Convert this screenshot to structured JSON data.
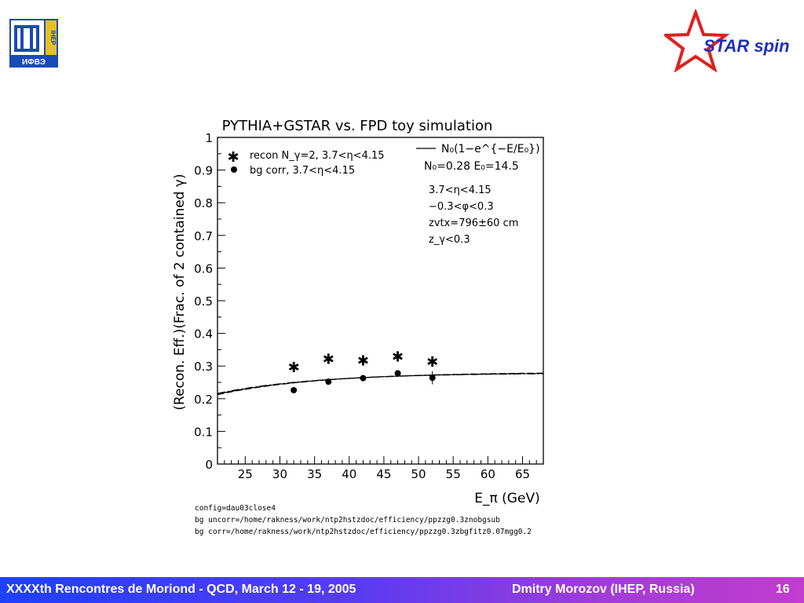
{
  "logos": {
    "left_text": "ИФВЭ",
    "left_side_text": "IHEP",
    "right_text": "STAR spin"
  },
  "chart_data": {
    "type": "scatter",
    "title": "PYTHIA+GSTAR vs. FPD toy simulation",
    "xlabel": "E_π (GeV)",
    "ylabel": "(Recon. Eff.)(Frac. of 2 contained γ)",
    "xlim": [
      21,
      68
    ],
    "ylim": [
      0,
      1
    ],
    "x_ticks": [
      25,
      30,
      35,
      40,
      45,
      50,
      55,
      60,
      65
    ],
    "y_ticks": [
      0,
      0.1,
      0.2,
      0.3,
      0.4,
      0.5,
      0.6,
      0.7,
      0.8,
      0.9,
      1
    ],
    "y_tick_labels": [
      "0",
      "0.1",
      "0.2",
      "0.3",
      "0.4",
      "0.5",
      "0.6",
      "0.7",
      "0.8",
      "0.9",
      "1"
    ],
    "series": [
      {
        "name": "recon N_γ=2, 3.7<η<4.15",
        "marker": "star",
        "x": [
          32,
          37,
          42,
          47,
          52
        ],
        "y": [
          0.298,
          0.323,
          0.318,
          0.331,
          0.315
        ],
        "yerr": [
          0.005,
          0.005,
          0.005,
          0.005,
          0.015
        ]
      },
      {
        "name": "bg corr, 3.7<η<4.15",
        "marker": "circle",
        "x": [
          32,
          37,
          42,
          47,
          52
        ],
        "y": [
          0.226,
          0.252,
          0.263,
          0.278,
          0.264
        ],
        "yerr": [
          0.005,
          0.005,
          0.005,
          0.005,
          0.02
        ]
      }
    ],
    "fit": {
      "formula": "N₀(1−e^{−E/E₀})",
      "label": "N₀=0.28  E₀=14.5",
      "N0": 0.28,
      "E0": 14.5
    },
    "cuts": [
      "3.7<η<4.15",
      "−0.3<φ<0.3",
      "zvtx=796±60 cm",
      "z_γ<0.3"
    ],
    "legend_position": "top-left",
    "grid": false
  },
  "config_notes": [
    "config=dau03close4",
    "bg uncorr=/home/rakness/work/ntp2hstzdoc/efficiency/ppzzg0.3znobgsub",
    "bg corr=/home/rakness/work/ntp2hstzdoc/efficiency/ppzzg0.3zbgfitz0.07mgg0.2"
  ],
  "footer": {
    "conference": "XXXXth Rencontres de Moriond - QCD, March 12 - 19, 2005",
    "author": "Dmitry Morozov (IHEP, Russia)",
    "page": "16"
  }
}
